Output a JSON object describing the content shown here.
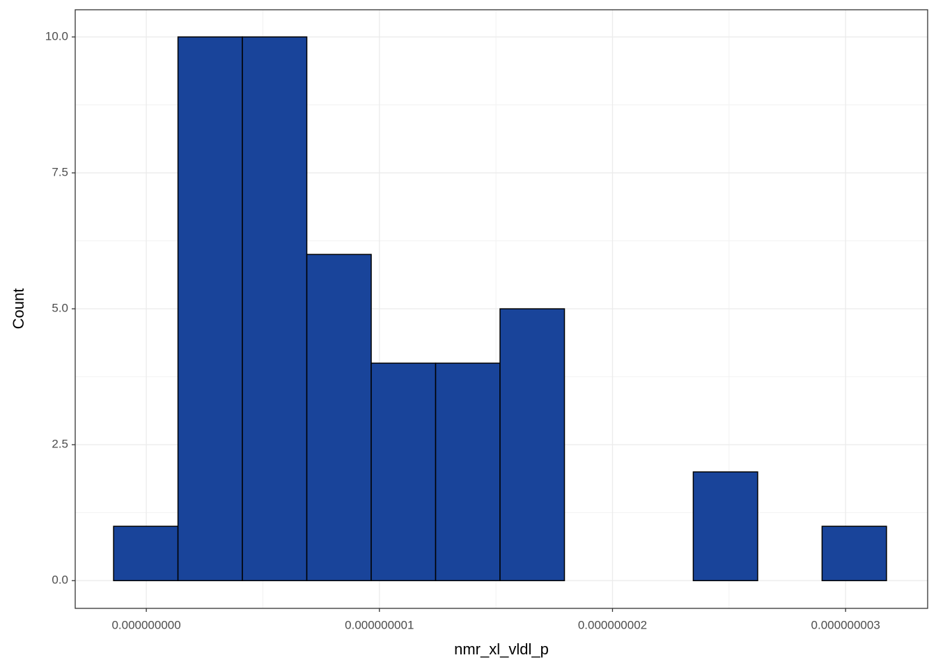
{
  "chart_data": {
    "type": "histogram",
    "x_label": "nmr_xl_vldl_p",
    "y_label": "Count",
    "bins": [
      -1.404e-10,
      1.359e-10,
      4.122e-10,
      6.886e-10,
      9.649e-10,
      1.2412e-09,
      1.5175e-09,
      1.7939e-09,
      2.0702e-09,
      2.3465e-09,
      2.6228e-09,
      2.8991e-09,
      3.1755e-09
    ],
    "values": [
      1,
      10,
      10,
      6,
      4,
      4,
      5,
      0,
      0,
      2,
      0,
      1
    ],
    "color": "#19449a",
    "edge_color": "#000000",
    "xlim": [
      -3.05e-10,
      3.352e-09
    ],
    "ylim": [
      -0.51,
      10.5
    ],
    "xticks": [
      {
        "value": 0,
        "label": "0.000000000"
      },
      {
        "value": 1e-09,
        "label": "0.000000001"
      },
      {
        "value": 2e-09,
        "label": "0.000000002"
      },
      {
        "value": 3e-09,
        "label": "0.000000003"
      }
    ],
    "yticks": [
      {
        "value": 0,
        "label": "0.0"
      },
      2.5,
      {
        "value": 5,
        "label": "5.0"
      },
      7.5,
      {
        "value": 10,
        "label": "10.0"
      }
    ],
    "grid": true
  }
}
